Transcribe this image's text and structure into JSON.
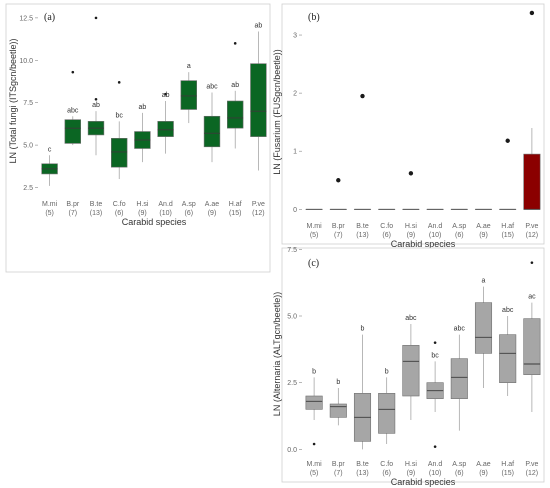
{
  "chart_data": [
    {
      "type": "box",
      "panel_label": "(a)",
      "xlabel": "Carabid species",
      "ylabel": "LN (Total fungi (ITSgcn/beetle))",
      "ylim": [
        2.0,
        13.2
      ],
      "yticks": [
        2.5,
        5.0,
        7.5,
        10.0,
        12.5
      ],
      "ytick_labels": [
        "2.5",
        "5.0",
        "7.5",
        "10.0",
        "12.5"
      ],
      "grid": false,
      "fill": "#0b6623",
      "categories": [
        "M.mi",
        "B.pr",
        "B.te",
        "C.fo",
        "H.si",
        "An.d",
        "A.sp",
        "A.ae",
        "H.af",
        "P.ve"
      ],
      "counts": [
        "(5)",
        "(7)",
        "(13)",
        "(6)",
        "(9)",
        "(10)",
        "(6)",
        "(9)",
        "(15)",
        "(12)"
      ],
      "letters": [
        "c",
        "abc",
        "ab",
        "bc",
        "ab",
        "ab",
        "a",
        "abc",
        "ab",
        "ab"
      ],
      "boxes": [
        {
          "min": 2.6,
          "q1": 3.3,
          "median": 3.6,
          "q3": 3.9,
          "max": 4.4,
          "outliers": []
        },
        {
          "min": 5.0,
          "q1": 5.1,
          "median": 6.0,
          "q3": 6.5,
          "max": 6.7,
          "outliers": [
            9.3
          ]
        },
        {
          "min": 4.4,
          "q1": 5.6,
          "median": 6.0,
          "q3": 6.4,
          "max": 7.0,
          "outliers": [
            12.5,
            7.7
          ]
        },
        {
          "min": 3.0,
          "q1": 3.7,
          "median": 4.6,
          "q3": 5.4,
          "max": 6.4,
          "outliers": [
            8.7
          ]
        },
        {
          "min": 4.0,
          "q1": 4.8,
          "median": 5.3,
          "q3": 5.8,
          "max": 6.9,
          "outliers": []
        },
        {
          "min": 4.5,
          "q1": 5.5,
          "median": 5.9,
          "q3": 6.4,
          "max": 7.6,
          "outliers": [
            8.0
          ]
        },
        {
          "min": 6.3,
          "q1": 7.1,
          "median": 7.9,
          "q3": 8.8,
          "max": 9.3,
          "outliers": []
        },
        {
          "min": 4.0,
          "q1": 4.9,
          "median": 5.7,
          "q3": 6.7,
          "max": 8.1,
          "outliers": []
        },
        {
          "min": 4.8,
          "q1": 6.0,
          "median": 6.6,
          "q3": 7.6,
          "max": 8.2,
          "outliers": [
            11.0
          ]
        },
        {
          "min": 3.5,
          "q1": 5.5,
          "median": 7.0,
          "q3": 9.8,
          "max": 11.7,
          "outliers": []
        }
      ]
    },
    {
      "type": "box",
      "panel_label": "(b)",
      "xlabel": "Carabid species",
      "ylabel": "LN (Fusarium (FUSgcn/beetle))",
      "ylim": [
        -0.15,
        3.5
      ],
      "yticks": [
        0,
        1,
        2,
        3
      ],
      "ytick_labels": [
        "0",
        "1",
        "2",
        "3"
      ],
      "grid": false,
      "fill": "#8b0000",
      "categories": [
        "M.mi",
        "B.pr",
        "B.te",
        "C.fo",
        "H.si",
        "An.d",
        "A.sp",
        "A.ae",
        "H.af",
        "P.ve"
      ],
      "counts": [
        "(5)",
        "(7)",
        "(13)",
        "(6)",
        "(9)",
        "(10)",
        "(6)",
        "(9)",
        "(15)",
        "(12)"
      ],
      "letters": [],
      "boxes": [
        {
          "min": 0,
          "q1": 0,
          "median": 0,
          "q3": 0,
          "max": 0,
          "outliers": []
        },
        {
          "min": 0,
          "q1": 0,
          "median": 0,
          "q3": 0,
          "max": 0,
          "outliers": [
            0.5
          ]
        },
        {
          "min": 0,
          "q1": 0,
          "median": 0,
          "q3": 0,
          "max": 0,
          "outliers": [
            1.95
          ]
        },
        {
          "min": 0,
          "q1": 0,
          "median": 0,
          "q3": 0,
          "max": 0,
          "outliers": []
        },
        {
          "min": 0,
          "q1": 0,
          "median": 0,
          "q3": 0,
          "max": 0,
          "outliers": [
            0.62
          ]
        },
        {
          "min": 0,
          "q1": 0,
          "median": 0,
          "q3": 0,
          "max": 0,
          "outliers": []
        },
        {
          "min": 0,
          "q1": 0,
          "median": 0,
          "q3": 0,
          "max": 0,
          "outliers": []
        },
        {
          "min": 0,
          "q1": 0,
          "median": 0,
          "q3": 0,
          "max": 0,
          "outliers": []
        },
        {
          "min": 0,
          "q1": 0,
          "median": 0,
          "q3": 0,
          "max": 0,
          "outliers": [
            1.18
          ]
        },
        {
          "min": 0,
          "q1": 0,
          "median": 0,
          "q3": 0.95,
          "max": 1.4,
          "outliers": [
            3.38
          ]
        }
      ]
    },
    {
      "type": "box",
      "panel_label": "(c)",
      "xlabel": "Carabid species",
      "ylabel": "LN (Alternaria (ALTgcn/beetle))",
      "ylim": [
        -0.25,
        7.4
      ],
      "yticks": [
        0.0,
        2.5,
        5.0,
        7.5
      ],
      "ytick_labels": [
        "0.0",
        "2.5",
        "5.0",
        "7.5"
      ],
      "grid": false,
      "fill": "#a6a6a6",
      "categories": [
        "M.mi",
        "B.pr",
        "B.te",
        "C.fo",
        "H.si",
        "An.d",
        "A.sp",
        "A.ae",
        "H.af",
        "P.ve"
      ],
      "counts": [
        "(5)",
        "(7)",
        "(13)",
        "(6)",
        "(9)",
        "(10)",
        "(6)",
        "(9)",
        "(15)",
        "(12)"
      ],
      "letters": [
        "b",
        "b",
        "b",
        "b",
        "abc",
        "bc",
        "abc",
        "a",
        "abc",
        "ac"
      ],
      "boxes": [
        {
          "min": 1.1,
          "q1": 1.5,
          "median": 1.8,
          "q3": 2.0,
          "max": 2.7,
          "outliers": [
            0.2
          ]
        },
        {
          "min": 0.9,
          "q1": 1.2,
          "median": 1.6,
          "q3": 1.7,
          "max": 2.3,
          "outliers": []
        },
        {
          "min": 0.0,
          "q1": 0.3,
          "median": 1.2,
          "q3": 2.1,
          "max": 4.3,
          "outliers": []
        },
        {
          "min": 0.2,
          "q1": 0.6,
          "median": 1.5,
          "q3": 2.1,
          "max": 2.7,
          "outliers": []
        },
        {
          "min": 1.1,
          "q1": 2.0,
          "median": 3.3,
          "q3": 3.9,
          "max": 4.7,
          "outliers": []
        },
        {
          "min": 1.4,
          "q1": 1.9,
          "median": 2.2,
          "q3": 2.5,
          "max": 3.3,
          "outliers": [
            0.1,
            4.0
          ]
        },
        {
          "min": 0.7,
          "q1": 1.9,
          "median": 2.7,
          "q3": 3.4,
          "max": 4.3,
          "outliers": []
        },
        {
          "min": 2.3,
          "q1": 3.6,
          "median": 4.2,
          "q3": 5.5,
          "max": 6.1,
          "outliers": []
        },
        {
          "min": 2.0,
          "q1": 2.5,
          "median": 3.6,
          "q3": 4.3,
          "max": 5.0,
          "outliers": []
        },
        {
          "min": 1.4,
          "q1": 2.8,
          "median": 3.2,
          "q3": 4.9,
          "max": 5.5,
          "outliers": [
            7.0
          ]
        }
      ]
    }
  ]
}
